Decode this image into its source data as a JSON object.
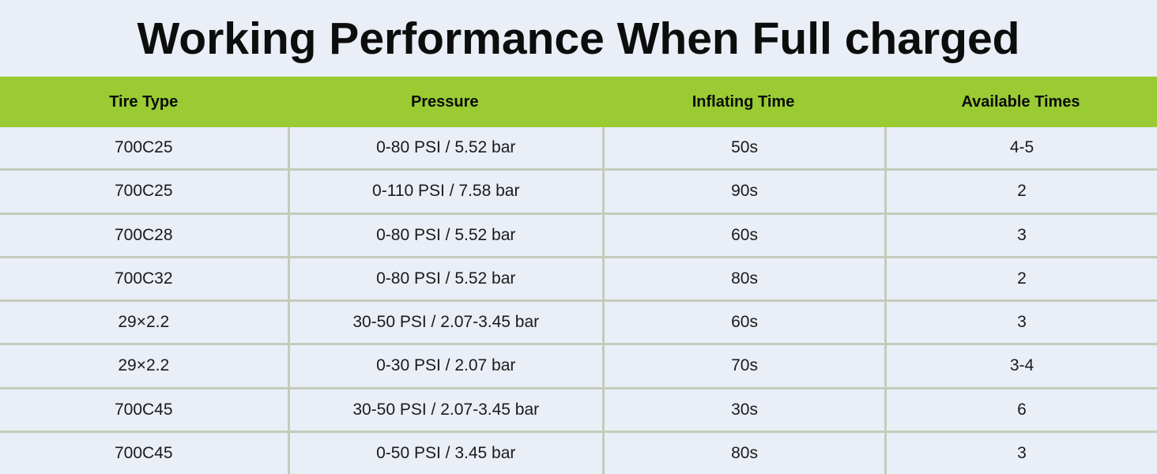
{
  "page": {
    "title": "Working Performance When Full charged"
  },
  "chart_data": {
    "type": "table",
    "title": "Working Performance When Full charged",
    "columns": [
      "Tire Type",
      "Pressure",
      "Inflating Time",
      "Available Times"
    ],
    "rows": [
      [
        "700C25",
        "0-80 PSI / 5.52 bar",
        "50s",
        "4-5"
      ],
      [
        "700C25",
        "0-110 PSI / 7.58 bar",
        "90s",
        "2"
      ],
      [
        "700C28",
        "0-80 PSI / 5.52 bar",
        "60s",
        "3"
      ],
      [
        "700C32",
        "0-80 PSI / 5.52 bar",
        "80s",
        "2"
      ],
      [
        "29×2.2",
        "30-50 PSI / 2.07-3.45 bar",
        "60s",
        "3"
      ],
      [
        "29×2.2",
        "0-30 PSI / 2.07 bar",
        "70s",
        "3-4"
      ],
      [
        "700C45",
        "30-50 PSI / 2.07-3.45 bar",
        "30s",
        "6"
      ],
      [
        "700C45",
        "0-50 PSI / 3.45 bar",
        "80s",
        "3"
      ]
    ]
  },
  "colors": {
    "accent-green": "#9acb33",
    "page-bg": "#eaeef6",
    "grid-line": "#c4ccba",
    "title-text": "#0d0d0d",
    "cell-text": "#1a1a1a"
  }
}
